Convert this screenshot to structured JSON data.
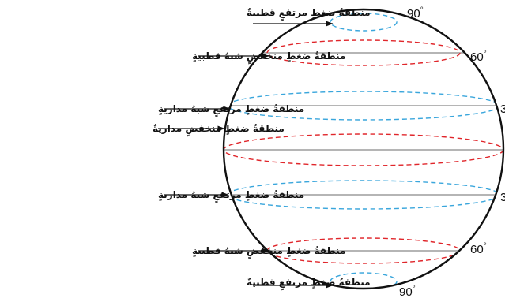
{
  "colors": {
    "globe_outline": "#111111",
    "latitude_line": "#6b6b6b",
    "high_pressure_dash": "#3aa6dc",
    "low_pressure_dash": "#e0262b",
    "arrow": "#111111"
  },
  "zones": [
    {
      "label": "منطقةُ ضغطٍ مرتفعٍ قطبيةٌ",
      "pressure": "high"
    },
    {
      "label": "منطقةُ ضغطٍ منخفضٍ شبهُ قطبيةٍ",
      "pressure": "low"
    },
    {
      "label": "منطقةُ ضغطٍ مرتفعٍ شبهُ مداريةٍ",
      "pressure": "high"
    },
    {
      "label": "منطقةُ ضغطٍ منخفضٍ مداريةٌ",
      "pressure": "low"
    },
    {
      "label": "منطقةُ ضغطٍ مرتفعٍ شبهُ مداريةٍ",
      "pressure": "high"
    },
    {
      "label": "منطقةُ ضغطٍ منخفضٍ شبهُ قطبيةٍ",
      "pressure": "low"
    },
    {
      "label": "منطقةُ ضغطٍ مرتفعٍ قطبيةٌ",
      "pressure": "high"
    }
  ],
  "latitudes": [
    {
      "value": "90",
      "degree": "°"
    },
    {
      "value": "60",
      "degree": "°"
    },
    {
      "value": "3",
      "degree": ""
    },
    {
      "value": "3",
      "degree": ""
    },
    {
      "value": "60",
      "degree": "°"
    },
    {
      "value": "90",
      "degree": "°"
    }
  ]
}
